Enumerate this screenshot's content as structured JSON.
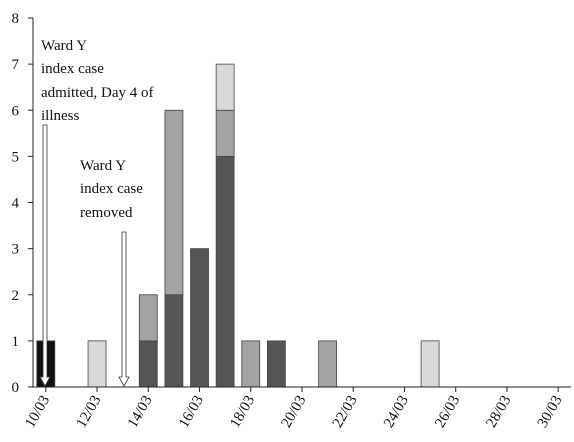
{
  "chart_data": {
    "type": "bar",
    "stacked": true,
    "categories": [
      "10/03",
      null,
      "12/03",
      null,
      "14/03",
      null,
      "16/03",
      null,
      "18/03",
      null,
      "20/03",
      null,
      "22/03",
      null,
      "24/03",
      null,
      "26/03",
      null,
      "28/03",
      null,
      "30/03"
    ],
    "series": [
      {
        "color": "#111111",
        "values": [
          1,
          0,
          0,
          0,
          0,
          0,
          0,
          0,
          0,
          0,
          0,
          0,
          0,
          0,
          0,
          0,
          0,
          0,
          0,
          0,
          0
        ]
      },
      {
        "color": "#555555",
        "values": [
          0,
          0,
          0,
          0,
          1,
          2,
          3,
          5,
          0,
          1,
          0,
          0,
          0,
          0,
          0,
          0,
          0,
          0,
          0,
          0,
          0
        ]
      },
      {
        "color": "#a3a3a3",
        "values": [
          0,
          0,
          0,
          0,
          1,
          4,
          0,
          1,
          1,
          0,
          0,
          1,
          0,
          0,
          0,
          0,
          0,
          0,
          0,
          0,
          0
        ]
      },
      {
        "color": "#d9d9d9",
        "values": [
          0,
          0,
          1,
          0,
          0,
          0,
          0,
          1,
          0,
          0,
          0,
          0,
          0,
          0,
          0,
          1,
          0,
          0,
          0,
          0,
          0
        ]
      }
    ],
    "ylim": [
      0,
      8
    ],
    "yticks": [
      0,
      1,
      2,
      3,
      4,
      5,
      6,
      7,
      8
    ],
    "grid": false,
    "annotations": [
      {
        "lines": [
          "Ward Y",
          "index case",
          "admitted, Day 4 of",
          "illness"
        ]
      },
      {
        "lines": [
          "Ward Y",
          "index case",
          "removed"
        ]
      }
    ]
  }
}
